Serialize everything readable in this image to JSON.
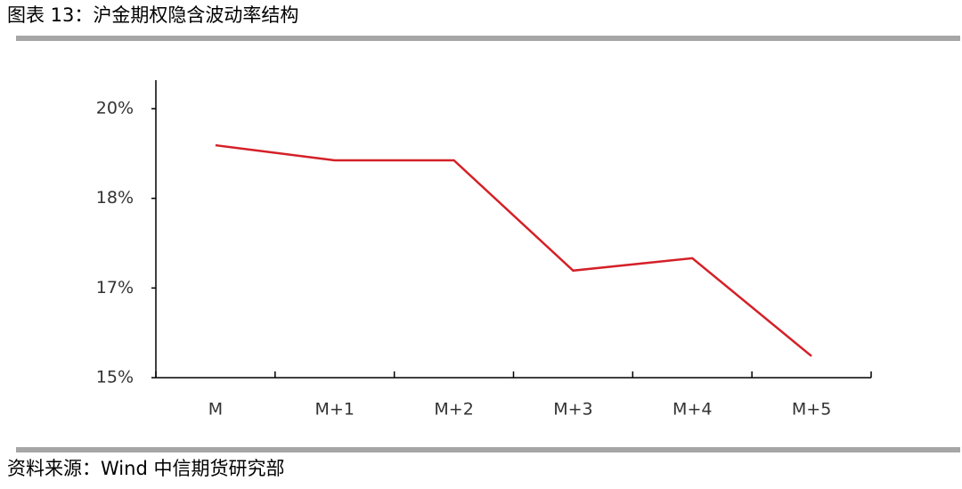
{
  "chart_data": {
    "type": "line",
    "title": "图表 13：沪金期权隐含波动率结构",
    "source": "资料来源：Wind 中信期货研究部",
    "categories": [
      "M",
      "M+1",
      "M+2",
      "M+3",
      "M+4",
      "M+5"
    ],
    "values": [
      19.32,
      19.04,
      19.04,
      16.99,
      17.22,
      15.4
    ],
    "color": "#d42027",
    "ylim": [
      15,
      20
    ],
    "yticks": [
      {
        "value": 15,
        "label": "15%"
      },
      {
        "value": 16.6667,
        "label": "17%"
      },
      {
        "value": 18.3333,
        "label": "18%"
      },
      {
        "value": 20,
        "label": "20%"
      }
    ],
    "grid": false
  }
}
